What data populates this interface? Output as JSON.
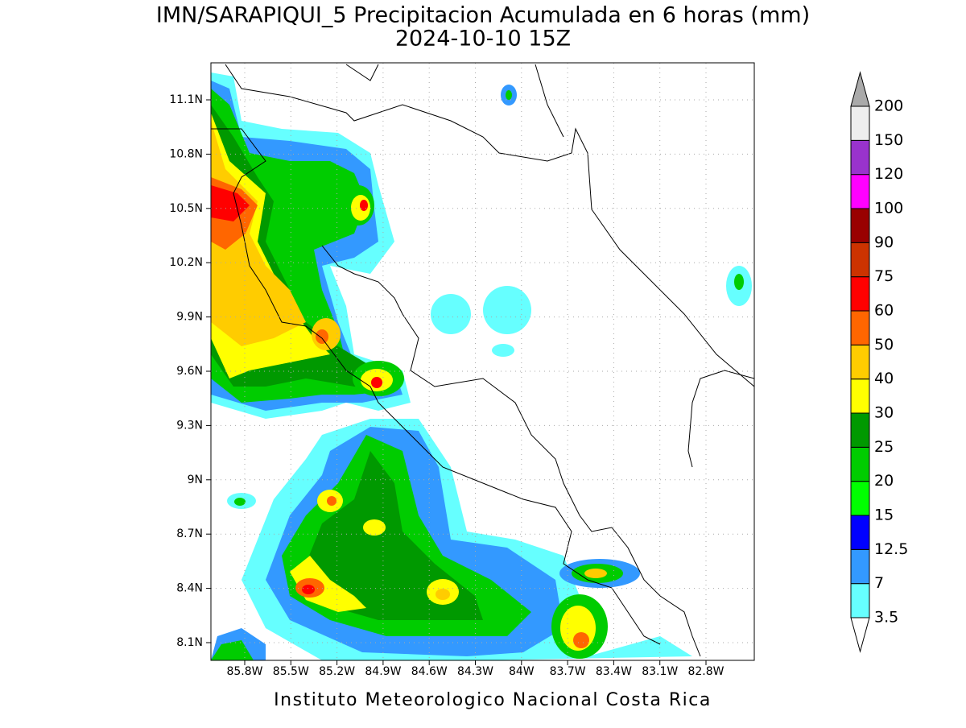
{
  "header": {
    "title": "IMN/SARAPIQUI_5 Precipitacion Acumulada en 6 horas (mm)",
    "subtitle": "2024-10-10 15Z"
  },
  "map": {
    "lat_labels": [
      "11.1N",
      "10.8N",
      "10.5N",
      "10.2N",
      "9.9N",
      "9.6N",
      "9.3N",
      "9N",
      "8.7N",
      "8.4N",
      "8.1N"
    ],
    "lon_labels": [
      "85.8W",
      "85.5W",
      "85.2W",
      "84.9W",
      "84.6W",
      "84.3W",
      "84W",
      "83.7W",
      "83.4W",
      "83.1W",
      "82.8W"
    ]
  },
  "colorbar": {
    "labels": [
      "3.5",
      "7",
      "12.5",
      "15",
      "20",
      "25",
      "30",
      "40",
      "50",
      "60",
      "75",
      "90",
      "100",
      "120",
      "150",
      "200"
    ],
    "colors": [
      "#66ffff",
      "#3399ff",
      "#0000ff",
      "#00ff00",
      "#00cc00",
      "#009900",
      "#ffff00",
      "#ffcc00",
      "#ff6600",
      "#ff0000",
      "#cc3300",
      "#990000",
      "#ff00ff",
      "#9933cc",
      "#eeeeee"
    ],
    "over_color": "#aaaaaa",
    "under_color": "#ffffff"
  },
  "footer": "Instituto Meteorologico Nacional Costa Rica"
}
